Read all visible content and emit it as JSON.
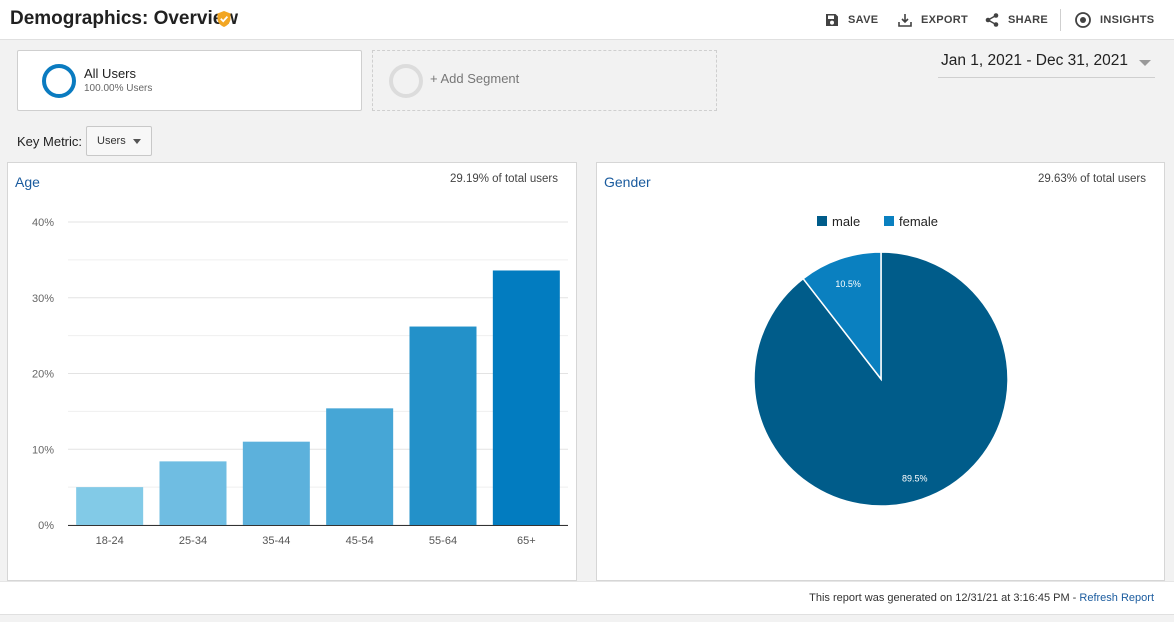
{
  "header": {
    "title": "Demographics: Overview",
    "actions": [
      {
        "label": "SAVE",
        "icon": "save-icon"
      },
      {
        "label": "EXPORT",
        "icon": "export-icon"
      },
      {
        "label": "SHARE",
        "icon": "share-icon"
      },
      {
        "label": "INSIGHTS",
        "icon": "insights-icon"
      }
    ]
  },
  "segments": {
    "all_users": {
      "name": "All Users",
      "percent": "100.00% Users"
    },
    "add_label": "+ Add Segment"
  },
  "date_range": "Jan 1, 2021 - Dec 31, 2021",
  "key_metric": {
    "label": "Key Metric:",
    "value": "Users"
  },
  "age_panel": {
    "title": "Age",
    "share": "29.19% of total users"
  },
  "gender_panel": {
    "title": "Gender",
    "share": "29.63% of total users"
  },
  "footer": {
    "text": "This report was generated on 12/31/21 at 3:16:45 PM - ",
    "link": "Refresh Report"
  },
  "colors": {
    "accent": "#0a7bc0",
    "link": "#1a5b9e",
    "verified": "#f2a623",
    "male": "#005c8a",
    "female": "#0a80c0"
  },
  "chart_data": [
    {
      "type": "bar",
      "title": "Age",
      "categories": [
        "18-24",
        "25-34",
        "35-44",
        "45-54",
        "55-64",
        "65+"
      ],
      "values": [
        5.0,
        8.4,
        11.0,
        15.4,
        26.2,
        33.6
      ],
      "colors": [
        "#82cae7",
        "#6fbde2",
        "#5cb1dc",
        "#46a6d6",
        "#2391c9",
        "#027cc0"
      ],
      "y_ticks": [
        "0%",
        "10%",
        "20%",
        "30%",
        "40%"
      ],
      "ylim": [
        0,
        40
      ],
      "grid": true
    },
    {
      "type": "pie",
      "title": "Gender",
      "series": [
        {
          "name": "male",
          "value": 89.5,
          "label": "89.5%"
        },
        {
          "name": "female",
          "value": 10.5,
          "label": "10.5%"
        }
      ],
      "legend": "top"
    }
  ]
}
